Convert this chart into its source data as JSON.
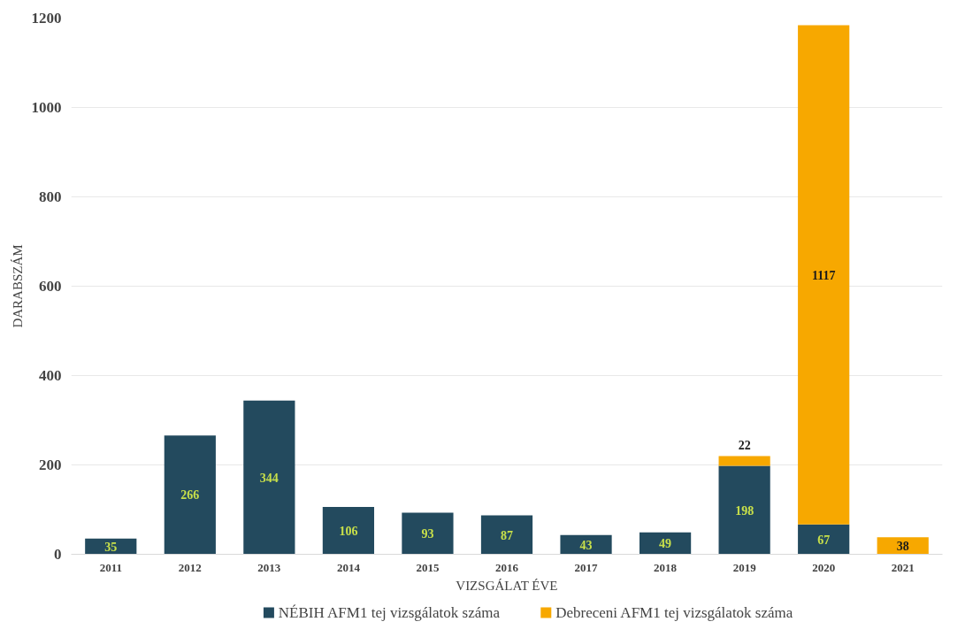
{
  "chart_data": {
    "type": "bar",
    "stacked": true,
    "xlabel": "VIZSGÁLAT ÉVE",
    "ylabel": "DARABSZÁM",
    "categories": [
      "2011",
      "2012",
      "2013",
      "2014",
      "2015",
      "2016",
      "2017",
      "2018",
      "2019",
      "2020",
      "2021"
    ],
    "series": [
      {
        "name": "NÉBIH AFM1 tej vizsgálatok száma",
        "color": "#234a5e",
        "values": [
          35,
          266,
          344,
          106,
          93,
          87,
          43,
          49,
          198,
          67,
          null
        ]
      },
      {
        "name": "Debreceni AFM1 tej vizsgálatok száma",
        "color": "#f7a800",
        "values": [
          null,
          null,
          null,
          null,
          null,
          null,
          null,
          null,
          22,
          1117,
          38
        ]
      }
    ],
    "ylim": [
      0,
      1200
    ],
    "yticks": [
      0,
      200,
      400,
      600,
      800,
      1000,
      1200
    ],
    "grid": "y",
    "legend": "bottom",
    "data_labels": true
  }
}
